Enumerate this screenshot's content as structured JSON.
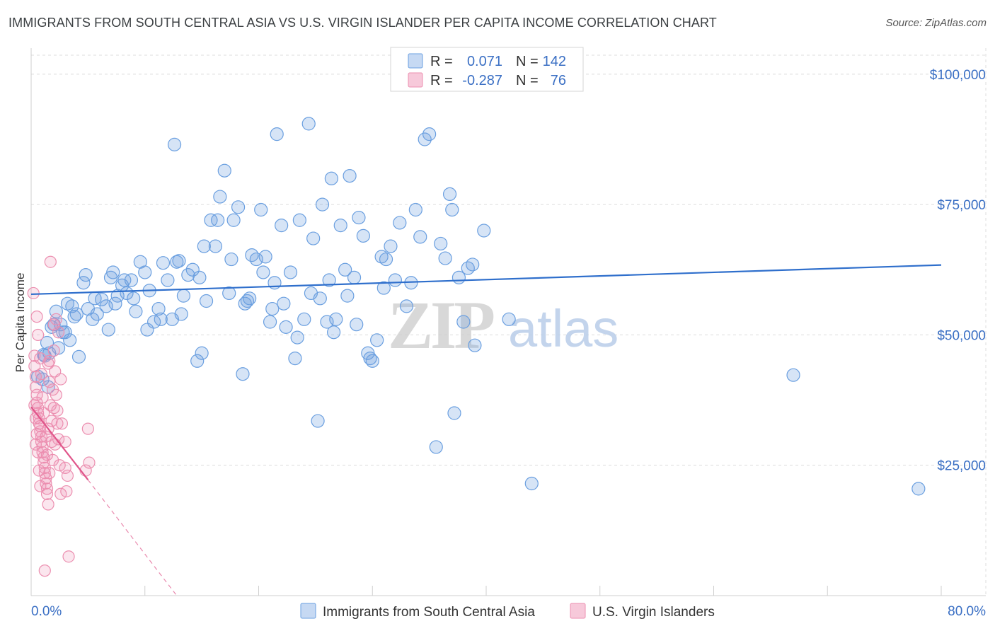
{
  "header": {
    "title": "IMMIGRANTS FROM SOUTH CENTRAL ASIA VS U.S. VIRGIN ISLANDER PER CAPITA INCOME CORRELATION CHART",
    "source": "Source: ZipAtlas.com"
  },
  "watermark": {
    "zip": "ZIP",
    "atlas": "atlas"
  },
  "colors": {
    "blue": "#6a9fe0",
    "blue_line": "#2f6fcc",
    "pink": "#ec8fb0",
    "pink_line": "#e0558a",
    "tick_text": "#3a6fc4",
    "grid": "#dcdcdc"
  },
  "legend": {
    "rows": [
      {
        "r_label": "R =",
        "r_value": "0.071",
        "n_label": "N =",
        "n_value": "142"
      },
      {
        "r_label": "R =",
        "r_value": "-0.287",
        "n_label": "N =",
        "n_value": "76"
      }
    ]
  },
  "chart_data": {
    "type": "scatter",
    "ylabel": "Per Capita Income",
    "xlim": [
      0,
      80
    ],
    "ylim": [
      0,
      105000
    ],
    "x_tick_labels": [
      {
        "value": 0,
        "label": "0.0%"
      },
      {
        "value": 80,
        "label": "80.0%"
      }
    ],
    "y_ticks": [
      {
        "value": 25000,
        "label": "$25,000"
      },
      {
        "value": 50000,
        "label": "$50,000"
      },
      {
        "value": 75000,
        "label": "$75,000"
      },
      {
        "value": 100000,
        "label": "$100,000"
      }
    ],
    "grid": true,
    "legend_position": "top-center",
    "series": [
      {
        "name": "Immigrants from South Central Asia",
        "color": "#6a9fe0",
        "trend": {
          "x": [
            0,
            80
          ],
          "y": [
            57800,
            63400
          ],
          "dashed": false
        },
        "points": [
          [
            0.6,
            42000
          ],
          [
            1.0,
            41500
          ],
          [
            1.2,
            46000
          ],
          [
            1.4,
            48500
          ],
          [
            1.6,
            46500
          ],
          [
            1.8,
            51500
          ],
          [
            2.2,
            54500
          ],
          [
            2.6,
            52000
          ],
          [
            2.8,
            50500
          ],
          [
            3.2,
            56000
          ],
          [
            3.4,
            49000
          ],
          [
            3.6,
            55500
          ],
          [
            4.0,
            54000
          ],
          [
            4.2,
            45800
          ],
          [
            4.6,
            60000
          ],
          [
            5.0,
            55000
          ],
          [
            5.4,
            53000
          ],
          [
            5.8,
            54000
          ],
          [
            6.2,
            56800
          ],
          [
            6.6,
            55500
          ],
          [
            7.0,
            61000
          ],
          [
            7.2,
            62000
          ],
          [
            7.6,
            57500
          ],
          [
            8.0,
            59500
          ],
          [
            8.4,
            58000
          ],
          [
            8.8,
            60500
          ],
          [
            9.2,
            54500
          ],
          [
            9.6,
            64000
          ],
          [
            10.0,
            62000
          ],
          [
            10.4,
            58500
          ],
          [
            10.8,
            52500
          ],
          [
            11.2,
            55000
          ],
          [
            11.6,
            63800
          ],
          [
            12.0,
            60500
          ],
          [
            12.4,
            53000
          ],
          [
            12.6,
            86500
          ],
          [
            13.0,
            64200
          ],
          [
            13.4,
            57500
          ],
          [
            13.8,
            61500
          ],
          [
            14.2,
            62500
          ],
          [
            14.6,
            45000
          ],
          [
            15.0,
            46500
          ],
          [
            15.4,
            56500
          ],
          [
            15.8,
            72000
          ],
          [
            16.2,
            67000
          ],
          [
            16.6,
            76500
          ],
          [
            17.0,
            81500
          ],
          [
            17.4,
            58000
          ],
          [
            17.8,
            72000
          ],
          [
            18.2,
            74500
          ],
          [
            18.6,
            42500
          ],
          [
            19.0,
            56500
          ],
          [
            19.4,
            65300
          ],
          [
            19.8,
            64500
          ],
          [
            20.2,
            74000
          ],
          [
            20.6,
            65000
          ],
          [
            21.0,
            52500
          ],
          [
            21.4,
            60000
          ],
          [
            21.6,
            88500
          ],
          [
            22.0,
            71000
          ],
          [
            22.4,
            51500
          ],
          [
            22.8,
            62000
          ],
          [
            23.2,
            45500
          ],
          [
            23.6,
            72000
          ],
          [
            24.0,
            53000
          ],
          [
            24.4,
            90500
          ],
          [
            24.8,
            68500
          ],
          [
            25.2,
            33500
          ],
          [
            25.6,
            75000
          ],
          [
            26.0,
            52500
          ],
          [
            26.4,
            80000
          ],
          [
            26.8,
            53000
          ],
          [
            27.2,
            71000
          ],
          [
            27.6,
            62500
          ],
          [
            28.0,
            80500
          ],
          [
            28.4,
            61000
          ],
          [
            28.8,
            72500
          ],
          [
            29.2,
            69000
          ],
          [
            29.6,
            46500
          ],
          [
            30.0,
            45000
          ],
          [
            30.4,
            49000
          ],
          [
            30.8,
            65000
          ],
          [
            31.2,
            64500
          ],
          [
            31.6,
            67000
          ],
          [
            32.0,
            60500
          ],
          [
            32.4,
            71500
          ],
          [
            33.0,
            55500
          ],
          [
            33.8,
            74000
          ],
          [
            34.2,
            68800
          ],
          [
            34.6,
            87500
          ],
          [
            35.0,
            88500
          ],
          [
            35.6,
            28500
          ],
          [
            36.0,
            67500
          ],
          [
            36.4,
            64700
          ],
          [
            36.8,
            77000
          ],
          [
            37.0,
            74000
          ],
          [
            37.2,
            35000
          ],
          [
            37.6,
            61000
          ],
          [
            38.0,
            52500
          ],
          [
            38.4,
            62800
          ],
          [
            39.0,
            48000
          ],
          [
            39.8,
            70000
          ],
          [
            42.0,
            53000
          ],
          [
            44.0,
            21500
          ],
          [
            67.0,
            42300
          ],
          [
            78.0,
            20500
          ],
          [
            1.1,
            46200
          ],
          [
            2.0,
            52000
          ],
          [
            3.0,
            50500
          ],
          [
            4.8,
            61500
          ],
          [
            5.6,
            57000
          ],
          [
            6.8,
            51000
          ],
          [
            8.2,
            60500
          ],
          [
            9.0,
            57000
          ],
          [
            10.2,
            51000
          ],
          [
            11.4,
            53000
          ],
          [
            13.2,
            54000
          ],
          [
            15.2,
            67000
          ],
          [
            16.4,
            72000
          ],
          [
            17.6,
            64500
          ],
          [
            18.8,
            56000
          ],
          [
            20.4,
            62000
          ],
          [
            22.2,
            56000
          ],
          [
            23.4,
            49500
          ],
          [
            25.4,
            57000
          ],
          [
            26.6,
            50500
          ],
          [
            27.8,
            57500
          ],
          [
            28.6,
            52000
          ],
          [
            29.8,
            45500
          ],
          [
            31.0,
            59000
          ],
          [
            1.5,
            40000
          ],
          [
            2.4,
            47500
          ],
          [
            3.8,
            53500
          ],
          [
            7.4,
            56000
          ],
          [
            12.8,
            64000
          ],
          [
            14.8,
            61000
          ],
          [
            19.2,
            57000
          ],
          [
            21.2,
            55000
          ],
          [
            24.6,
            58000
          ],
          [
            26.2,
            60500
          ],
          [
            33.4,
            60000
          ],
          [
            38.8,
            63500
          ]
        ]
      },
      {
        "name": "U.S. Virgin Islanders",
        "color": "#ec8fb0",
        "trend": {
          "x": [
            0,
            5
          ],
          "y": [
            36200,
            22200
          ],
          "extension": {
            "x": [
              5,
              12.8
            ],
            "y": [
              22200,
              0
            ],
            "dashed": true
          }
        },
        "points": [
          [
            0.2,
            58000
          ],
          [
            0.3,
            46000
          ],
          [
            0.3,
            44000
          ],
          [
            0.4,
            42000
          ],
          [
            0.4,
            40000
          ],
          [
            0.5,
            38500
          ],
          [
            0.5,
            37000
          ],
          [
            0.6,
            36000
          ],
          [
            0.6,
            35000
          ],
          [
            0.7,
            34000
          ],
          [
            0.7,
            33000
          ],
          [
            0.8,
            32500
          ],
          [
            0.8,
            31500
          ],
          [
            0.9,
            30500
          ],
          [
            0.9,
            29500
          ],
          [
            1.0,
            28500
          ],
          [
            1.0,
            27500
          ],
          [
            1.1,
            26500
          ],
          [
            1.1,
            25500
          ],
          [
            1.2,
            24500
          ],
          [
            1.2,
            23500
          ],
          [
            1.3,
            22500
          ],
          [
            1.3,
            21500
          ],
          [
            1.4,
            20500
          ],
          [
            1.4,
            19500
          ],
          [
            1.5,
            17500
          ],
          [
            1.6,
            45000
          ],
          [
            1.6,
            41000
          ],
          [
            1.7,
            36500
          ],
          [
            1.8,
            33500
          ],
          [
            1.8,
            29500
          ],
          [
            1.9,
            26000
          ],
          [
            2.0,
            52000
          ],
          [
            2.0,
            47000
          ],
          [
            2.1,
            43000
          ],
          [
            2.2,
            38500
          ],
          [
            2.3,
            35500
          ],
          [
            2.4,
            30000
          ],
          [
            2.5,
            25000
          ],
          [
            2.6,
            19500
          ],
          [
            1.7,
            64000
          ],
          [
            2.2,
            53000
          ],
          [
            2.4,
            50500
          ],
          [
            2.0,
            36000
          ],
          [
            2.6,
            41500
          ],
          [
            1.2,
            4800
          ],
          [
            3.3,
            7500
          ],
          [
            3.0,
            24500
          ],
          [
            3.2,
            23000
          ],
          [
            4.8,
            24000
          ],
          [
            5.0,
            32000
          ],
          [
            5.1,
            25500
          ],
          [
            3.0,
            29500
          ],
          [
            1.5,
            32000
          ],
          [
            0.5,
            53500
          ],
          [
            0.6,
            50000
          ],
          [
            0.8,
            45500
          ],
          [
            0.9,
            42500
          ],
          [
            1.0,
            38000
          ],
          [
            1.1,
            35000
          ],
          [
            1.3,
            30500
          ],
          [
            1.4,
            27000
          ],
          [
            0.4,
            34000
          ],
          [
            0.5,
            31000
          ],
          [
            0.6,
            27500
          ],
          [
            0.7,
            24000
          ],
          [
            0.8,
            21000
          ],
          [
            2.1,
            29000
          ],
          [
            2.3,
            33000
          ],
          [
            1.9,
            39500
          ],
          [
            1.5,
            44500
          ],
          [
            0.3,
            36500
          ],
          [
            0.4,
            29000
          ],
          [
            1.6,
            23500
          ],
          [
            2.7,
            33000
          ],
          [
            3.1,
            20000
          ]
        ]
      }
    ]
  }
}
